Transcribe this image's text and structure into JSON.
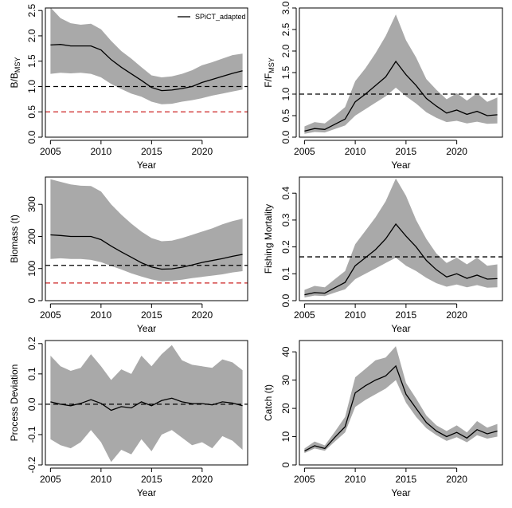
{
  "chart_data": [
    {
      "id": "bbmsy",
      "type": "line",
      "ylabel_main": "B/B",
      "ylabel_sub": "MSY",
      "xlabel": "Year",
      "xlim": [
        2004.5,
        2024.5
      ],
      "ylim": [
        0,
        2.55
      ],
      "xticks": [
        2005,
        2010,
        2015,
        2020
      ],
      "yticks": [
        "0.0",
        "0.5",
        "1.0",
        "1.5",
        "2.0",
        "2.5"
      ],
      "legend": "SPiCT_adapted",
      "legend_position": "top-right",
      "x": [
        2005,
        2006,
        2007,
        2008,
        2009,
        2010,
        2011,
        2012,
        2013,
        2014,
        2015,
        2016,
        2017,
        2018,
        2019,
        2020,
        2021,
        2022,
        2023,
        2024
      ],
      "series": [
        {
          "role": "estimate",
          "values": [
            1.82,
            1.83,
            1.8,
            1.8,
            1.8,
            1.72,
            1.53,
            1.38,
            1.25,
            1.12,
            0.98,
            0.92,
            0.93,
            0.96,
            1.0,
            1.08,
            1.14,
            1.2,
            1.26,
            1.31
          ]
        },
        {
          "role": "lower",
          "values": [
            1.25,
            1.27,
            1.26,
            1.27,
            1.25,
            1.18,
            1.05,
            0.95,
            0.86,
            0.8,
            0.7,
            0.65,
            0.66,
            0.7,
            0.73,
            0.77,
            0.82,
            0.86,
            0.9,
            0.94
          ]
        },
        {
          "role": "upper",
          "values": [
            2.56,
            2.35,
            2.25,
            2.22,
            2.24,
            2.13,
            1.9,
            1.7,
            1.55,
            1.38,
            1.22,
            1.18,
            1.2,
            1.25,
            1.32,
            1.42,
            1.48,
            1.55,
            1.62,
            1.65
          ]
        }
      ],
      "hlines": [
        {
          "y": 1.0,
          "color": "#000000"
        },
        {
          "y": 0.5,
          "color": "#cc2222"
        }
      ]
    },
    {
      "id": "ffmsy",
      "type": "line",
      "ylabel_main": "F/F",
      "ylabel_sub": "MSY",
      "xlabel": "Year",
      "xlim": [
        2004.5,
        2024.5
      ],
      "ylim": [
        0,
        3.0
      ],
      "xticks": [
        2005,
        2010,
        2015,
        2020
      ],
      "yticks": [
        "0.0",
        "0.5",
        "1.0",
        "1.5",
        "2.0",
        "2.5",
        "3.0"
      ],
      "x": [
        2005,
        2006,
        2007,
        2008,
        2009,
        2010,
        2011,
        2012,
        2013,
        2014,
        2015,
        2016,
        2017,
        2018,
        2019,
        2020,
        2021,
        2022,
        2023,
        2024
      ],
      "series": [
        {
          "role": "estimate",
          "values": [
            0.14,
            0.2,
            0.18,
            0.3,
            0.42,
            0.82,
            1.0,
            1.2,
            1.4,
            1.76,
            1.45,
            1.2,
            0.9,
            0.72,
            0.56,
            0.63,
            0.53,
            0.6,
            0.5,
            0.52
          ]
        },
        {
          "role": "lower",
          "values": [
            0.08,
            0.12,
            0.11,
            0.19,
            0.27,
            0.5,
            0.65,
            0.8,
            0.95,
            1.15,
            0.95,
            0.78,
            0.58,
            0.45,
            0.35,
            0.38,
            0.32,
            0.36,
            0.31,
            0.32
          ]
        },
        {
          "role": "upper",
          "values": [
            0.25,
            0.35,
            0.32,
            0.5,
            0.7,
            1.3,
            1.6,
            1.95,
            2.35,
            2.85,
            2.25,
            1.85,
            1.35,
            1.1,
            0.88,
            1.02,
            0.85,
            1.02,
            0.82,
            0.92
          ]
        }
      ],
      "hlines": [
        {
          "y": 1.0,
          "color": "#000000"
        }
      ]
    },
    {
      "id": "biomass",
      "type": "line",
      "ylabel_main": "Biomass (t)",
      "xlabel": "Year",
      "xlim": [
        2004.5,
        2024.5
      ],
      "ylim": [
        0,
        385
      ],
      "xticks": [
        2005,
        2010,
        2015,
        2020
      ],
      "yticks": [
        "0",
        "100",
        "200",
        "300"
      ],
      "x": [
        2005,
        2006,
        2007,
        2008,
        2009,
        2010,
        2011,
        2012,
        2013,
        2014,
        2015,
        2016,
        2017,
        2018,
        2019,
        2020,
        2021,
        2022,
        2023,
        2024
      ],
      "series": [
        {
          "role": "estimate",
          "values": [
            205,
            203,
            200,
            200,
            200,
            190,
            170,
            152,
            135,
            118,
            105,
            98,
            99,
            104,
            111,
            119,
            125,
            131,
            138,
            144
          ]
        },
        {
          "role": "lower",
          "values": [
            130,
            132,
            130,
            130,
            127,
            120,
            108,
            97,
            85,
            75,
            66,
            60,
            62,
            65,
            70,
            74,
            78,
            82,
            88,
            92
          ]
        },
        {
          "role": "upper",
          "values": [
            378,
            370,
            362,
            358,
            357,
            340,
            300,
            268,
            240,
            215,
            195,
            185,
            187,
            195,
            205,
            215,
            225,
            238,
            248,
            255
          ]
        }
      ],
      "hlines": [
        {
          "y": 110,
          "color": "#000000"
        },
        {
          "y": 55,
          "color": "#cc2222"
        }
      ]
    },
    {
      "id": "fishing",
      "type": "line",
      "ylabel_main": "Fishing Mortality",
      "xlabel": "Year",
      "xlim": [
        2004.5,
        2024.5
      ],
      "ylim": [
        0,
        0.46
      ],
      "xticks": [
        2005,
        2010,
        2015,
        2020
      ],
      "yticks": [
        "0.0",
        "0.1",
        "0.2",
        "0.3",
        "0.4"
      ],
      "x": [
        2005,
        2006,
        2007,
        2008,
        2009,
        2010,
        2011,
        2012,
        2013,
        2014,
        2015,
        2016,
        2017,
        2018,
        2019,
        2020,
        2021,
        2022,
        2023,
        2024
      ],
      "series": [
        {
          "role": "estimate",
          "values": [
            0.022,
            0.03,
            0.028,
            0.048,
            0.068,
            0.13,
            0.16,
            0.19,
            0.23,
            0.285,
            0.24,
            0.2,
            0.15,
            0.115,
            0.088,
            0.1,
            0.083,
            0.095,
            0.08,
            0.082
          ]
        },
        {
          "role": "lower",
          "values": [
            0.012,
            0.019,
            0.017,
            0.03,
            0.042,
            0.08,
            0.1,
            0.12,
            0.14,
            0.16,
            0.13,
            0.11,
            0.085,
            0.065,
            0.052,
            0.06,
            0.05,
            0.058,
            0.048,
            0.05
          ]
        },
        {
          "role": "upper",
          "values": [
            0.04,
            0.055,
            0.05,
            0.08,
            0.11,
            0.21,
            0.26,
            0.31,
            0.37,
            0.455,
            0.39,
            0.3,
            0.23,
            0.175,
            0.14,
            0.16,
            0.135,
            0.16,
            0.13,
            0.135
          ]
        }
      ],
      "hlines": [
        {
          "y": 0.163,
          "color": "#000000"
        }
      ]
    },
    {
      "id": "process",
      "type": "line",
      "ylabel_main": "Process Deviation",
      "xlabel": "Year",
      "xlim": [
        2004.5,
        2024.5
      ],
      "ylim": [
        -0.2,
        0.21
      ],
      "xticks": [
        2005,
        2010,
        2015,
        2020
      ],
      "yticks": [
        "-0.2",
        "-0.1",
        "0.0",
        "0.1",
        "0.2"
      ],
      "x": [
        2005,
        2006,
        2007,
        2008,
        2009,
        2010,
        2011,
        2012,
        2013,
        2014,
        2015,
        2016,
        2017,
        2018,
        2019,
        2020,
        2021,
        2022,
        2023,
        2024
      ],
      "series": [
        {
          "role": "estimate",
          "values": [
            0.008,
            0.0,
            -0.005,
            0.003,
            0.015,
            0.003,
            -0.02,
            -0.008,
            -0.012,
            0.008,
            -0.005,
            0.012,
            0.02,
            0.008,
            0.002,
            0.002,
            -0.002,
            0.008,
            0.004,
            -0.005
          ]
        },
        {
          "role": "lower",
          "values": [
            -0.115,
            -0.135,
            -0.145,
            -0.125,
            -0.085,
            -0.125,
            -0.19,
            -0.15,
            -0.165,
            -0.115,
            -0.155,
            -0.1,
            -0.085,
            -0.11,
            -0.135,
            -0.125,
            -0.145,
            -0.105,
            -0.12,
            -0.15
          ]
        },
        {
          "role": "upper",
          "values": [
            0.16,
            0.125,
            0.11,
            0.12,
            0.165,
            0.125,
            0.08,
            0.115,
            0.1,
            0.16,
            0.125,
            0.165,
            0.195,
            0.145,
            0.13,
            0.125,
            0.12,
            0.148,
            0.138,
            0.112
          ]
        }
      ],
      "hlines": [
        {
          "y": 0.0,
          "color": "#000000"
        }
      ]
    },
    {
      "id": "catch",
      "type": "line",
      "ylabel_main": "Catch (t)",
      "xlabel": "Year",
      "xlim": [
        2004.5,
        2024.5
      ],
      "ylim": [
        0,
        44
      ],
      "xticks": [
        2005,
        2010,
        2015,
        2020
      ],
      "yticks": [
        "0",
        "10",
        "20",
        "30",
        "40"
      ],
      "x": [
        2005,
        2006,
        2007,
        2008,
        2009,
        2010,
        2011,
        2012,
        2013,
        2014,
        2015,
        2016,
        2017,
        2018,
        2019,
        2020,
        2021,
        2022,
        2023,
        2024
      ],
      "series": [
        {
          "role": "estimate",
          "values": [
            4.9,
            6.8,
            5.8,
            9.8,
            13.5,
            25.5,
            28.0,
            30.0,
            31.5,
            35.0,
            25.0,
            20.0,
            15.0,
            12.0,
            10.0,
            11.5,
            9.5,
            12.5,
            11.0,
            12.0
          ]
        },
        {
          "role": "lower",
          "values": [
            4.2,
            5.8,
            5.0,
            8.3,
            11.5,
            20.5,
            23.0,
            25.0,
            27.0,
            30.0,
            22.0,
            17.0,
            13.0,
            10.5,
            8.5,
            9.8,
            8.0,
            10.5,
            9.3,
            10.0
          ]
        },
        {
          "role": "upper",
          "values": [
            5.8,
            8.3,
            6.9,
            11.8,
            17.0,
            31.0,
            34.0,
            37.0,
            38.0,
            42.0,
            29.0,
            23.5,
            17.5,
            14.0,
            12.0,
            14.0,
            11.5,
            15.5,
            13.2,
            14.5
          ]
        }
      ],
      "hlines": []
    }
  ]
}
